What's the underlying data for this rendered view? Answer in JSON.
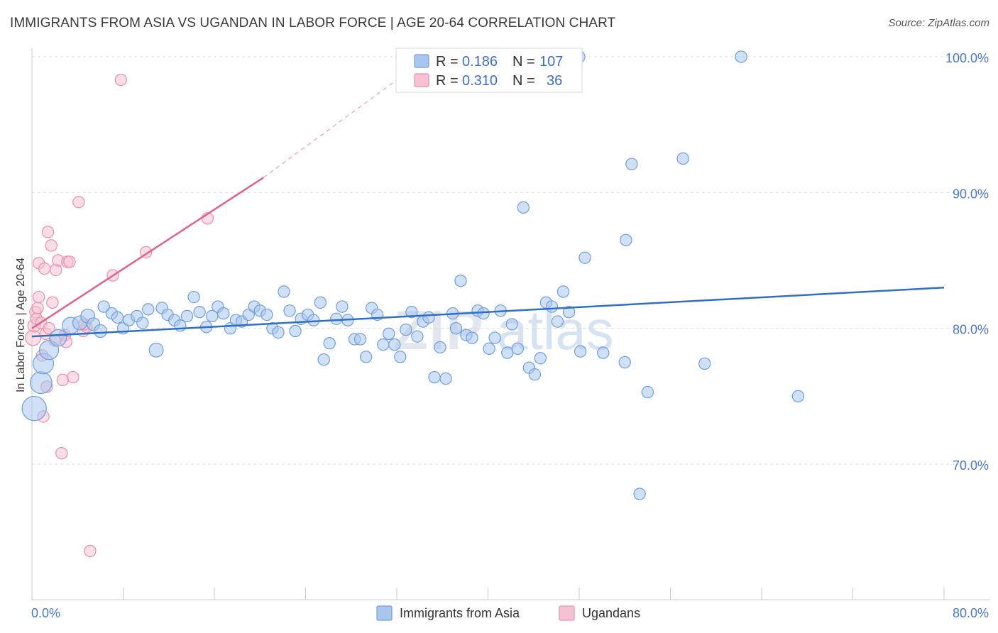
{
  "title": "IMMIGRANTS FROM ASIA VS UGANDAN IN LABOR FORCE | AGE 20-64 CORRELATION CHART",
  "source": "Source: ZipAtlas.com",
  "watermark": {
    "part1": "ZIP",
    "part2": "atlas"
  },
  "colors": {
    "blue_fill": "#a9c7ee",
    "blue_stroke": "#6f9fdc",
    "blue_line": "#2f6fc9",
    "pink_fill": "#f6c1d1",
    "pink_stroke": "#e890ab",
    "pink_line": "#e0628a",
    "tick_text": "#4a79c8",
    "grid": "#dcdcdc"
  },
  "legend": {
    "rows": [
      {
        "r_label": "R =",
        "r_value": "0.186",
        "n_label": "N =",
        "n_value": "107"
      },
      {
        "r_label": "R =",
        "r_value": "0.310",
        "n_label": "N =",
        "n_value": "36"
      }
    ]
  },
  "bottom_legend": {
    "series1": "Immigrants from Asia",
    "series2": "Ugandans"
  },
  "chart_data": {
    "type": "scatter",
    "title": "IMMIGRANTS FROM ASIA VS UGANDAN IN LABOR FORCE | AGE 20-64 CORRELATION CHART",
    "xlabel": "",
    "ylabel": "In Labor Force | Age 20-64",
    "xlim": [
      0,
      80
    ],
    "ylim": [
      60,
      102
    ],
    "x_tick_labels": [
      "0.0%",
      "80.0%"
    ],
    "y_ticks": [
      70,
      80,
      90,
      100
    ],
    "y_tick_labels": [
      "70.0%",
      "80.0%",
      "90.0%",
      "100.0%"
    ],
    "grid": true,
    "legend_position": "top-center",
    "series": [
      {
        "name": "Immigrants from Asia",
        "R": 0.186,
        "N": 107,
        "trend": {
          "x": [
            0,
            80
          ],
          "y": [
            79.4,
            83.0
          ]
        },
        "points": [
          [
            0.2,
            74.1,
            1.9
          ],
          [
            0.8,
            76.0,
            1.7
          ],
          [
            1.0,
            77.4,
            1.6
          ],
          [
            1.5,
            78.4,
            1.5
          ],
          [
            2.3,
            79.3,
            1.3
          ],
          [
            3.4,
            80.2,
            1.3
          ],
          [
            4.2,
            80.4,
            1.1
          ],
          [
            4.9,
            80.9,
            1.1
          ],
          [
            5.4,
            80.3,
            1.0
          ],
          [
            6.0,
            79.8,
            1.0
          ],
          [
            6.3,
            81.6,
            0.9
          ],
          [
            7.0,
            81.1,
            0.9
          ],
          [
            7.5,
            80.8,
            0.9
          ],
          [
            8.0,
            80.0,
            0.9
          ],
          [
            8.5,
            80.6,
            0.9
          ],
          [
            9.2,
            80.9,
            0.9
          ],
          [
            9.7,
            80.4,
            0.9
          ],
          [
            10.2,
            81.4,
            0.9
          ],
          [
            10.9,
            78.4,
            1.1
          ],
          [
            11.4,
            81.5,
            0.9
          ],
          [
            11.9,
            81.0,
            0.9
          ],
          [
            12.5,
            80.6,
            0.9
          ],
          [
            13.0,
            80.2,
            0.9
          ],
          [
            13.6,
            80.9,
            0.9
          ],
          [
            14.2,
            82.3,
            0.9
          ],
          [
            14.7,
            81.2,
            0.9
          ],
          [
            15.3,
            80.1,
            0.9
          ],
          [
            15.8,
            80.9,
            0.9
          ],
          [
            16.3,
            81.6,
            0.9
          ],
          [
            16.8,
            81.1,
            0.9
          ],
          [
            17.4,
            80.0,
            0.9
          ],
          [
            17.9,
            80.6,
            0.9
          ],
          [
            18.4,
            80.5,
            0.9
          ],
          [
            19.0,
            81.0,
            0.9
          ],
          [
            19.5,
            81.6,
            0.9
          ],
          [
            20.0,
            81.3,
            0.9
          ],
          [
            20.6,
            81.0,
            0.9
          ],
          [
            21.1,
            80.0,
            0.9
          ],
          [
            21.6,
            79.7,
            0.9
          ],
          [
            22.1,
            82.7,
            0.9
          ],
          [
            22.6,
            81.3,
            0.9
          ],
          [
            23.1,
            79.8,
            0.9
          ],
          [
            23.6,
            80.7,
            0.9
          ],
          [
            24.2,
            81.0,
            0.9
          ],
          [
            24.7,
            80.6,
            0.9
          ],
          [
            25.3,
            81.9,
            0.9
          ],
          [
            25.6,
            77.7,
            0.9
          ],
          [
            26.1,
            78.9,
            0.9
          ],
          [
            26.7,
            80.7,
            0.9
          ],
          [
            27.2,
            81.6,
            0.9
          ],
          [
            27.7,
            80.6,
            0.9
          ],
          [
            28.3,
            79.2,
            0.9
          ],
          [
            28.8,
            79.2,
            0.9
          ],
          [
            29.3,
            77.9,
            0.9
          ],
          [
            29.8,
            81.5,
            0.9
          ],
          [
            30.3,
            81.0,
            0.9
          ],
          [
            30.8,
            78.8,
            0.9
          ],
          [
            31.3,
            79.6,
            0.9
          ],
          [
            31.8,
            78.8,
            0.9
          ],
          [
            32.3,
            77.9,
            0.9
          ],
          [
            32.8,
            79.9,
            0.9
          ],
          [
            33.3,
            81.2,
            0.9
          ],
          [
            33.8,
            79.4,
            0.9
          ],
          [
            34.3,
            80.5,
            0.9
          ],
          [
            34.8,
            80.8,
            0.9
          ],
          [
            35.3,
            76.4,
            0.9
          ],
          [
            35.8,
            78.6,
            0.9
          ],
          [
            36.3,
            76.3,
            0.9
          ],
          [
            36.9,
            81.1,
            0.9
          ],
          [
            37.2,
            80.0,
            0.9
          ],
          [
            37.6,
            83.5,
            0.9
          ],
          [
            38.1,
            79.5,
            0.9
          ],
          [
            38.6,
            79.3,
            0.9
          ],
          [
            39.1,
            81.3,
            0.9
          ],
          [
            39.6,
            81.1,
            0.9
          ],
          [
            40.1,
            78.5,
            0.9
          ],
          [
            40.6,
            79.3,
            0.9
          ],
          [
            41.1,
            81.3,
            0.9
          ],
          [
            41.7,
            78.2,
            0.9
          ],
          [
            42.1,
            80.3,
            0.9
          ],
          [
            42.6,
            78.5,
            0.9
          ],
          [
            43.1,
            88.9,
            0.9
          ],
          [
            43.6,
            77.1,
            0.9
          ],
          [
            44.1,
            76.6,
            0.9
          ],
          [
            44.6,
            77.8,
            0.9
          ],
          [
            45.1,
            81.9,
            0.9
          ],
          [
            45.6,
            81.6,
            0.9
          ],
          [
            46.1,
            80.5,
            0.9
          ],
          [
            46.6,
            82.7,
            0.9
          ],
          [
            47.1,
            81.2,
            0.9
          ],
          [
            48.1,
            78.3,
            0.9
          ],
          [
            48.5,
            85.2,
            0.9
          ],
          [
            50.1,
            78.2,
            0.9
          ],
          [
            52.0,
            77.5,
            0.9
          ],
          [
            52.1,
            86.5,
            0.9
          ],
          [
            52.6,
            92.1,
            0.9
          ],
          [
            53.3,
            67.8,
            0.9
          ],
          [
            54.0,
            75.3,
            0.9
          ],
          [
            57.1,
            92.5,
            0.9
          ],
          [
            59.0,
            77.4,
            0.9
          ],
          [
            48.0,
            100.0,
            0.9
          ],
          [
            62.2,
            100.0,
            0.9
          ],
          [
            67.2,
            75.0,
            0.9
          ]
        ]
      },
      {
        "name": "Ugandans",
        "R": 0.31,
        "N": 36,
        "trend": {
          "x": [
            0,
            20.3
          ],
          "y": [
            80.0,
            91.1
          ]
        },
        "trend_extension": {
          "x": [
            20.3,
            32.0
          ],
          "y": [
            91.1,
            98.3
          ]
        },
        "points": [
          [
            0.1,
            79.3,
            1.2
          ],
          [
            0.2,
            80.2,
            1.0
          ],
          [
            0.3,
            81.2,
            0.9
          ],
          [
            0.4,
            80.7,
            0.9
          ],
          [
            0.5,
            81.5,
            0.9
          ],
          [
            0.6,
            82.3,
            0.9
          ],
          [
            0.6,
            84.8,
            0.9
          ],
          [
            0.8,
            80.4,
            0.9
          ],
          [
            0.9,
            78.0,
            0.9
          ],
          [
            1.0,
            73.5,
            0.9
          ],
          [
            1.1,
            84.4,
            0.9
          ],
          [
            1.2,
            79.6,
            0.9
          ],
          [
            1.3,
            75.7,
            0.9
          ],
          [
            1.4,
            87.1,
            0.9
          ],
          [
            1.5,
            80.0,
            0.9
          ],
          [
            1.7,
            86.1,
            0.9
          ],
          [
            1.8,
            81.9,
            0.9
          ],
          [
            2.1,
            84.3,
            0.9
          ],
          [
            2.3,
            85.0,
            0.9
          ],
          [
            2.7,
            76.2,
            0.9
          ],
          [
            2.9,
            79.5,
            0.9
          ],
          [
            2.6,
            70.8,
            0.9
          ],
          [
            3.0,
            79.0,
            0.9
          ],
          [
            3.1,
            84.9,
            0.9
          ],
          [
            3.3,
            84.9,
            0.9
          ],
          [
            3.6,
            76.4,
            0.9
          ],
          [
            4.1,
            89.3,
            0.9
          ],
          [
            4.5,
            79.8,
            0.9
          ],
          [
            4.8,
            80.1,
            0.9
          ],
          [
            5.1,
            63.6,
            0.9
          ],
          [
            7.1,
            83.9,
            0.9
          ],
          [
            7.8,
            98.3,
            0.9
          ],
          [
            10.0,
            85.6,
            0.9
          ],
          [
            15.4,
            88.1,
            0.9
          ],
          [
            4.6,
            80.3,
            0.9
          ],
          [
            2.0,
            79.1,
            0.9
          ]
        ]
      }
    ]
  }
}
